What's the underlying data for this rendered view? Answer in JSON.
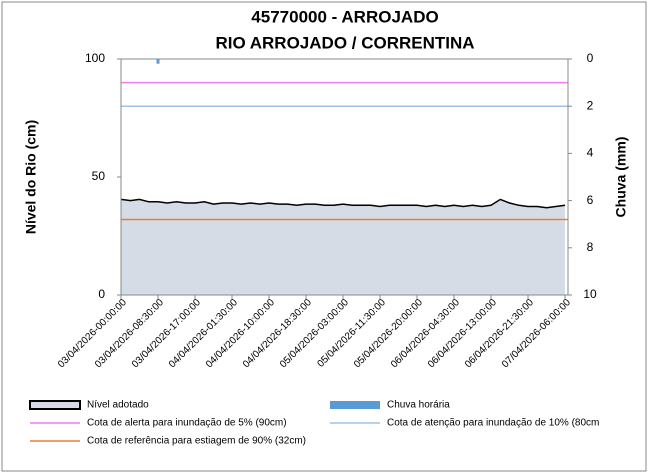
{
  "chart_data": {
    "type": "line",
    "title": "45770000 - ARROJADO",
    "subtitle": "RIO ARROJADO / CORRENTINA",
    "y_label": "Nível do Rio (cm)",
    "y2_label": "Chuva (mm)",
    "ylim": [
      0,
      100
    ],
    "yticks": [
      0,
      50,
      100
    ],
    "y2lim": [
      0,
      10
    ],
    "y2_inverted": true,
    "y2ticks": [
      0,
      2,
      4,
      6,
      8,
      10
    ],
    "categories": [
      "03/04/2026-00:00:00",
      null,
      null,
      null,
      "03/04/2026-08:30:00",
      null,
      null,
      null,
      "03/04/2026-17:00:00",
      null,
      null,
      null,
      "04/04/2026-01:30:00",
      null,
      null,
      null,
      "04/04/2026-10:00:00",
      null,
      null,
      null,
      "04/04/2026-18:30:00",
      null,
      null,
      null,
      "05/04/2026-03:00:00",
      null,
      null,
      null,
      "05/04/2026-11:30:00",
      null,
      null,
      null,
      "05/04/2026-20:00:00",
      null,
      null,
      null,
      "06/04/2026-04:30:00",
      null,
      null,
      null,
      "06/04/2026-13:00:00",
      null,
      null,
      null,
      "06/04/2026-21:30:00",
      null,
      null,
      null,
      "07/04/2026-06:00:00"
    ],
    "series": [
      {
        "name": "Nível adotado",
        "type": "area",
        "color": "#000000",
        "fill": "#d6dce5",
        "values": [
          40.5,
          40,
          40.5,
          39.5,
          39.5,
          39,
          39.5,
          39,
          39,
          39.5,
          38.5,
          39,
          39,
          38.5,
          39,
          38.5,
          39,
          38.5,
          38.5,
          38,
          38.5,
          38.5,
          38,
          38,
          38.5,
          38,
          38,
          38,
          37.5,
          38,
          38,
          38,
          38,
          37.5,
          38,
          37.5,
          38,
          37.5,
          38,
          37.5,
          38,
          40.5,
          39,
          38,
          37.5,
          37.5,
          37,
          37.5,
          38
        ]
      },
      {
        "name": "Chuva horária",
        "type": "bar",
        "axis": "y2",
        "color": "#5b9bd5",
        "values": [
          null,
          null,
          null,
          null,
          0.2,
          null,
          null,
          null,
          null,
          null,
          null,
          null,
          null,
          null,
          null,
          null,
          null,
          null,
          null,
          null,
          null,
          null,
          null,
          null,
          null,
          null,
          null,
          null,
          null,
          null,
          null,
          null,
          null,
          null,
          null,
          null,
          null,
          null,
          null,
          null,
          null,
          null,
          null,
          null,
          null,
          null,
          null,
          null,
          null
        ]
      },
      {
        "name": "Cota de alerta para inundação de 5% (90cm)",
        "type": "hline",
        "color": "#f07cf0",
        "value": 90
      },
      {
        "name": "Cota de atenção para inundação de 10% (80cm",
        "type": "hline",
        "color": "#9dc3e6",
        "value": 80
      },
      {
        "name": "Cota de referência para estiagem de 90% (32cm)",
        "type": "hline",
        "color": "#ed7d31",
        "value": 32
      }
    ],
    "grid": false
  }
}
